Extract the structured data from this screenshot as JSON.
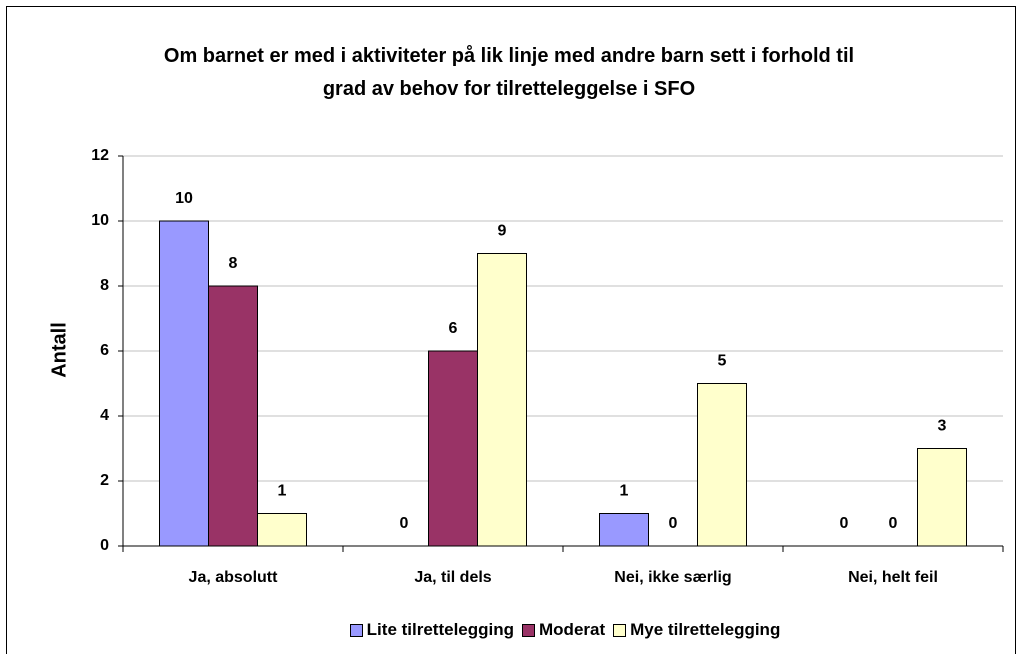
{
  "chart_data": {
    "type": "bar",
    "title": "Om barnet er med i aktiviteter på lik linje med andre barn sett i forhold til grad av behov for tilretteleggelse i SFO",
    "y_label": "Antall",
    "categories": [
      "Ja, absolutt",
      "Ja, til dels",
      "Nei, ikke særlig",
      "Nei, helt feil"
    ],
    "series": [
      {
        "name": "Lite tilrettelegging",
        "color": "#9999ff",
        "values": [
          10,
          0,
          1,
          0
        ]
      },
      {
        "name": "Moderat",
        "color": "#993366",
        "values": [
          8,
          6,
          0,
          0
        ]
      },
      {
        "name": "Mye tilrettelegging",
        "color": "#ffffcc",
        "values": [
          1,
          9,
          5,
          3
        ]
      }
    ],
    "ylim": [
      0,
      12
    ],
    "yticks": [
      0,
      2,
      4,
      6,
      8,
      10,
      12
    ],
    "grid": true,
    "legend": "bottom"
  }
}
